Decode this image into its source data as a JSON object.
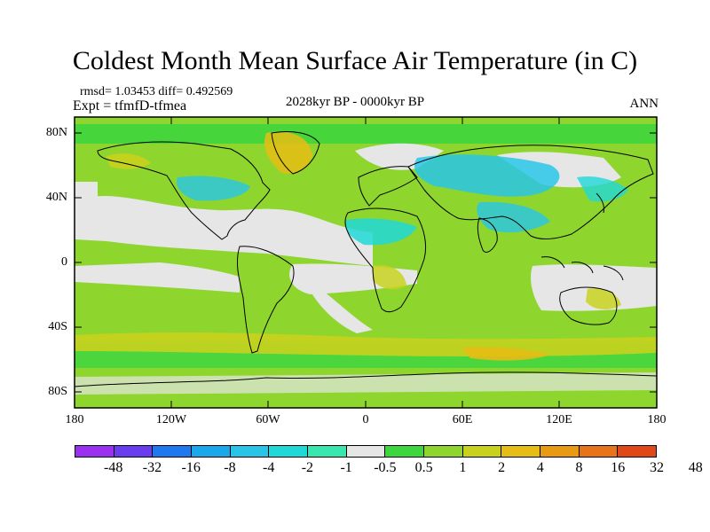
{
  "title": "Coldest Month Mean Surface Air Temperature (in C)",
  "stats": "rmsd= 1.03453 diff= 0.492569",
  "experiment": "Expt = tfmfD-tfmea",
  "period": "2028kyr BP - 0000kyr BP",
  "season": "ANN",
  "lat_labels": [
    "80N",
    "40N",
    "0",
    "40S",
    "80S"
  ],
  "lon_labels": [
    "180",
    "120W",
    "60W",
    "0",
    "60E",
    "120E",
    "180"
  ],
  "legend": {
    "colors": [
      "#9b30f0",
      "#6a3cf0",
      "#1f78ee",
      "#1aa7ec",
      "#29c5e8",
      "#20d8d8",
      "#38e6b0",
      "#e6e6e6",
      "#3ed63e",
      "#8ed62e",
      "#c8d21e",
      "#e6bd14",
      "#e89a12",
      "#e8741a",
      "#e04818"
    ],
    "labels": [
      "-48",
      "-32",
      "-16",
      "-8",
      "-4",
      "-2",
      "-1",
      "-0.5",
      "0.5",
      "1",
      "2",
      "4",
      "8",
      "16",
      "32",
      "48"
    ]
  },
  "map_colors": {
    "warm_green": "#8ed62e",
    "light_green": "#3ed63e",
    "yellow_green": "#c8d21e",
    "gold": "#e6bd14",
    "neutral": "#e6e6e6",
    "cyan": "#29c5e8",
    "teal": "#20d8d8"
  }
}
